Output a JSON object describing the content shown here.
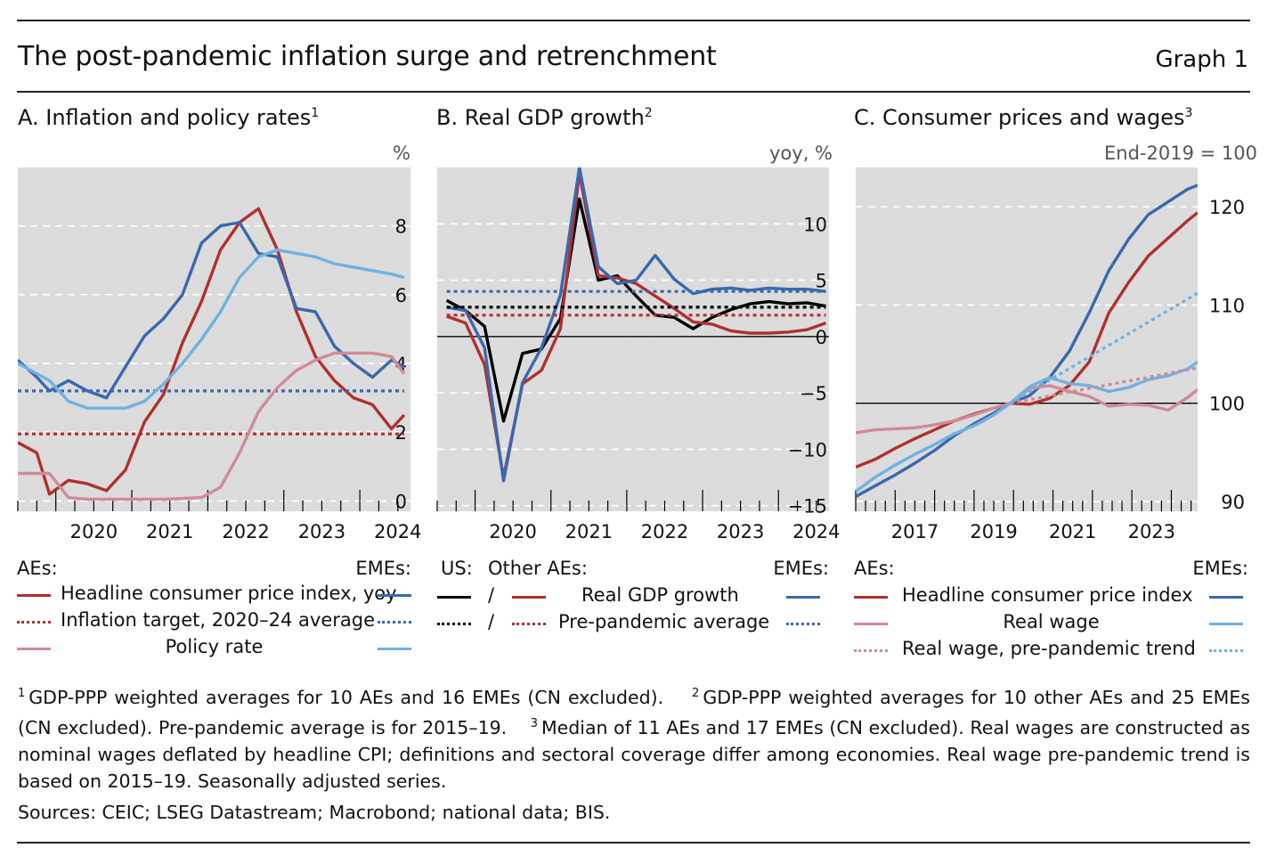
{
  "header": {
    "title": "The post-pandemic inflation surge and retrenchment",
    "graph_number": "Graph 1"
  },
  "colors": {
    "ae_red": "#b03030",
    "eme_blue": "#3a68ad",
    "light_blue": "#6fb2e0",
    "pink": "#d08b97",
    "black": "#000000",
    "plot_bg": "#dcdcdc"
  },
  "panelA": {
    "title": "A. Inflation and policy rates",
    "title_sup": "1",
    "unit": "%",
    "legend": {
      "left_head": "AEs:",
      "right_head": "EMEs:",
      "items": [
        {
          "label": "Headline consumer price index, yoy"
        },
        {
          "label": "Inflation target, 2020–24 average"
        },
        {
          "label": "Policy rate"
        }
      ]
    }
  },
  "panelB": {
    "title": "B. Real GDP growth",
    "title_sup": "2",
    "unit": "yoy, %",
    "legend": {
      "us_head": "US:",
      "other_head": "Other AEs:",
      "right_head": "EMEs:",
      "slash": "/",
      "items": [
        {
          "label": "Real GDP growth"
        },
        {
          "label": "Pre-pandemic average"
        }
      ]
    }
  },
  "panelC": {
    "title": "C. Consumer prices and wages",
    "title_sup": "3",
    "unit": "End-2019 = 100",
    "legend": {
      "left_head": "AEs:",
      "right_head": "EMEs:",
      "items": [
        {
          "label": "Headline consumer price index"
        },
        {
          "label": "Real wage"
        },
        {
          "label": "Real wage, pre-pandemic trend"
        }
      ]
    }
  },
  "footnotes": {
    "n1_mark": "1",
    "n1": "GDP-PPP weighted averages for 10 AEs and 16 EMEs (CN excluded).",
    "n2_mark": "2",
    "n2": "GDP-PPP weighted averages for 10 other AEs and 25 EMEs (CN excluded). Pre-pandemic average is for 2015–19.",
    "n3_mark": "3",
    "n3": "Median of 11 AEs and 17 EMEs (CN excluded). Real wages are constructed as nominal wages deflated by headline CPI; definitions and sectoral coverage differ among economies. Real wage pre-pandemic trend is based on 2015–19. Seasonally adjusted series."
  },
  "sources": "Sources: CEIC; LSEG Datastream; Macrobond; national data; BIS.",
  "chart_data": [
    {
      "type": "line",
      "title": "A. Inflation and policy rates",
      "ylabel": "%",
      "x_ticks": [
        "2020",
        "2021",
        "2022",
        "2023",
        "2024"
      ],
      "xlim": [
        "2019-07",
        "2024-09"
      ],
      "ylim": [
        -0.3,
        9.7
      ],
      "y_ticks": [
        0,
        2,
        4,
        6,
        8
      ],
      "grid": true,
      "series": [
        {
          "name": "Headline consumer price index, yoy",
          "group": "AEs",
          "color": "ae_red",
          "style": "solid",
          "x": [
            "2019-07",
            "2019-10",
            "2019-12",
            "2020-03",
            "2020-06",
            "2020-09",
            "2020-12",
            "2021-03",
            "2021-06",
            "2021-09",
            "2021-12",
            "2022-03",
            "2022-06",
            "2022-09",
            "2022-12",
            "2023-03",
            "2023-06",
            "2023-09",
            "2023-12",
            "2024-03",
            "2024-06",
            "2024-08"
          ],
          "values": [
            1.7,
            1.4,
            0.2,
            0.6,
            0.5,
            0.3,
            0.9,
            2.3,
            3.1,
            4.6,
            5.8,
            7.3,
            8.1,
            8.5,
            7.3,
            5.5,
            4.2,
            3.5,
            3.0,
            2.8,
            2.1,
            2.5
          ]
        },
        {
          "name": "Headline consumer price index, yoy",
          "group": "EMEs",
          "color": "eme_blue",
          "style": "solid",
          "x": [
            "2019-07",
            "2019-10",
            "2019-12",
            "2020-03",
            "2020-06",
            "2020-09",
            "2020-12",
            "2021-03",
            "2021-06",
            "2021-09",
            "2021-12",
            "2022-03",
            "2022-06",
            "2022-09",
            "2022-12",
            "2023-03",
            "2023-06",
            "2023-09",
            "2023-12",
            "2024-03",
            "2024-06",
            "2024-08"
          ],
          "values": [
            4.1,
            3.6,
            3.2,
            3.5,
            3.2,
            3.0,
            3.9,
            4.8,
            5.3,
            6.0,
            7.5,
            8.0,
            8.1,
            7.2,
            7.1,
            5.6,
            5.5,
            4.5,
            4.0,
            3.6,
            4.1,
            3.9
          ]
        },
        {
          "name": "Inflation target, 2020–24 average",
          "group": "AEs",
          "color": "ae_red",
          "style": "dotted",
          "x": [
            "2019-07",
            "2024-08"
          ],
          "values": [
            1.95,
            1.95
          ]
        },
        {
          "name": "Inflation target, 2020–24 average",
          "group": "EMEs",
          "color": "eme_blue",
          "style": "dotted",
          "x": [
            "2019-07",
            "2024-08"
          ],
          "values": [
            3.2,
            3.2
          ]
        },
        {
          "name": "Policy rate",
          "group": "AEs",
          "color": "pink",
          "style": "solid",
          "x": [
            "2019-07",
            "2019-12",
            "2020-03",
            "2020-06",
            "2020-12",
            "2021-06",
            "2021-12",
            "2022-03",
            "2022-06",
            "2022-09",
            "2022-12",
            "2023-03",
            "2023-06",
            "2023-09",
            "2023-12",
            "2024-03",
            "2024-06",
            "2024-08"
          ],
          "values": [
            0.8,
            0.8,
            0.1,
            0.05,
            0.05,
            0.05,
            0.1,
            0.4,
            1.4,
            2.6,
            3.3,
            3.8,
            4.1,
            4.3,
            4.3,
            4.3,
            4.2,
            3.7
          ]
        },
        {
          "name": "Policy rate",
          "group": "EMEs",
          "color": "light_blue",
          "style": "solid",
          "x": [
            "2019-07",
            "2019-12",
            "2020-03",
            "2020-06",
            "2020-12",
            "2021-03",
            "2021-06",
            "2021-09",
            "2021-12",
            "2022-03",
            "2022-06",
            "2022-09",
            "2022-12",
            "2023-03",
            "2023-06",
            "2023-09",
            "2023-12",
            "2024-03",
            "2024-06",
            "2024-08"
          ],
          "values": [
            4.0,
            3.5,
            2.9,
            2.7,
            2.7,
            2.9,
            3.4,
            4.0,
            4.7,
            5.5,
            6.5,
            7.1,
            7.3,
            7.2,
            7.1,
            6.9,
            6.8,
            6.7,
            6.6,
            6.5
          ]
        }
      ]
    },
    {
      "type": "line",
      "title": "B. Real GDP growth",
      "ylabel": "yoy, %",
      "x_ticks": [
        "2020",
        "2021",
        "2022",
        "2023",
        "2024"
      ],
      "xlim": [
        "2019-07",
        "2024-09"
      ],
      "ylim": [
        -15.5,
        15
      ],
      "y_ticks": [
        -15,
        -10,
        -5,
        0,
        5,
        10
      ],
      "grid": true,
      "series": [
        {
          "name": "Real GDP growth",
          "group": "US",
          "color": "black",
          "style": "solid",
          "x": [
            "2019-Q3",
            "2019-Q4",
            "2020-Q1",
            "2020-Q2",
            "2020-Q3",
            "2020-Q4",
            "2021-Q1",
            "2021-Q2",
            "2021-Q3",
            "2021-Q4",
            "2022-Q1",
            "2022-Q2",
            "2022-Q3",
            "2022-Q4",
            "2023-Q1",
            "2023-Q2",
            "2023-Q3",
            "2023-Q4",
            "2024-Q1",
            "2024-Q2",
            "2024-Q3"
          ],
          "values": [
            3.2,
            2.3,
            0.9,
            -7.5,
            -1.5,
            -1.1,
            1.6,
            12.2,
            5.0,
            5.4,
            3.6,
            1.9,
            1.7,
            0.7,
            1.7,
            2.4,
            2.9,
            3.1,
            2.9,
            3.0,
            2.7
          ]
        },
        {
          "name": "Real GDP growth",
          "group": "Other AEs",
          "color": "ae_red",
          "style": "solid",
          "x": [
            "2019-Q3",
            "2019-Q4",
            "2020-Q1",
            "2020-Q2",
            "2020-Q3",
            "2020-Q4",
            "2021-Q1",
            "2021-Q2",
            "2021-Q3",
            "2021-Q4",
            "2022-Q1",
            "2022-Q2",
            "2022-Q3",
            "2022-Q4",
            "2023-Q1",
            "2023-Q2",
            "2023-Q3",
            "2023-Q4",
            "2024-Q1",
            "2024-Q2",
            "2024-Q3"
          ],
          "values": [
            1.8,
            1.2,
            -2.5,
            -12.5,
            -4.2,
            -3.0,
            0.7,
            14.5,
            5.4,
            5.2,
            4.7,
            3.6,
            2.5,
            1.3,
            1.1,
            0.5,
            0.3,
            0.3,
            0.4,
            0.6,
            1.2
          ]
        },
        {
          "name": "Real GDP growth",
          "group": "EMEs",
          "color": "eme_blue",
          "style": "solid",
          "x": [
            "2019-Q3",
            "2019-Q4",
            "2020-Q1",
            "2020-Q2",
            "2020-Q3",
            "2020-Q4",
            "2021-Q1",
            "2021-Q2",
            "2021-Q3",
            "2021-Q4",
            "2022-Q1",
            "2022-Q2",
            "2022-Q3",
            "2022-Q4",
            "2023-Q1",
            "2023-Q2",
            "2023-Q3",
            "2023-Q4",
            "2024-Q1",
            "2024-Q2",
            "2024-Q3"
          ],
          "values": [
            2.6,
            2.3,
            -1.0,
            -12.8,
            -4.1,
            -1.0,
            3.7,
            15.0,
            6.2,
            4.7,
            5.0,
            7.2,
            5.1,
            3.8,
            4.2,
            4.3,
            4.1,
            4.3,
            4.2,
            4.2,
            4.0
          ]
        },
        {
          "name": "Pre-pandemic average",
          "group": "US",
          "color": "black",
          "style": "dotted",
          "x": [
            "2019-Q3",
            "2024-Q3"
          ],
          "values": [
            2.6,
            2.6
          ]
        },
        {
          "name": "Pre-pandemic average",
          "group": "Other AEs",
          "color": "ae_red",
          "style": "dotted",
          "x": [
            "2019-Q3",
            "2024-Q3"
          ],
          "values": [
            1.9,
            1.9
          ]
        },
        {
          "name": "Pre-pandemic average",
          "group": "EMEs",
          "color": "eme_blue",
          "style": "dotted",
          "x": [
            "2019-Q3",
            "2024-Q3"
          ],
          "values": [
            4.0,
            4.0
          ]
        }
      ]
    },
    {
      "type": "line",
      "title": "C. Consumer prices and wages",
      "ylabel": "End-2019 = 100",
      "x_ticks": [
        "2017",
        "2019",
        "2021",
        "2023"
      ],
      "xlim": [
        "2016-01",
        "2024-09"
      ],
      "ylim": [
        89,
        124
      ],
      "y_ticks": [
        90,
        100,
        110,
        120
      ],
      "grid": true,
      "series": [
        {
          "name": "Headline consumer price index",
          "group": "AEs",
          "color": "ae_red",
          "style": "solid",
          "x": [
            "2016-01",
            "2016-07",
            "2017-01",
            "2017-07",
            "2018-01",
            "2018-07",
            "2019-01",
            "2019-07",
            "2019-12",
            "2020-06",
            "2020-12",
            "2021-06",
            "2021-12",
            "2022-06",
            "2022-12",
            "2023-06",
            "2023-12",
            "2024-06",
            "2024-09"
          ],
          "values": [
            93.5,
            94.3,
            95.4,
            96.4,
            97.3,
            98.2,
            98.9,
            99.5,
            100,
            99.9,
            100.5,
            101.8,
            104.2,
            109.2,
            112.3,
            115.0,
            116.8,
            118.6,
            119.4
          ]
        },
        {
          "name": "Headline consumer price index",
          "group": "EMEs",
          "color": "eme_blue",
          "style": "solid",
          "x": [
            "2016-01",
            "2016-07",
            "2017-01",
            "2017-07",
            "2018-01",
            "2018-07",
            "2019-01",
            "2019-07",
            "2019-12",
            "2020-06",
            "2020-12",
            "2021-06",
            "2021-12",
            "2022-06",
            "2022-12",
            "2023-06",
            "2023-12",
            "2024-06",
            "2024-09"
          ],
          "values": [
            90.5,
            91.6,
            92.7,
            93.9,
            95.2,
            96.7,
            97.9,
            99.0,
            100,
            100.8,
            102.6,
            105.3,
            109.2,
            113.5,
            116.7,
            119.2,
            120.5,
            121.8,
            122.2
          ]
        },
        {
          "name": "Real wage",
          "group": "AEs",
          "color": "pink",
          "style": "solid",
          "x": [
            "2016-01",
            "2016-07",
            "2017-01",
            "2017-07",
            "2018-01",
            "2018-07",
            "2019-01",
            "2019-07",
            "2019-12",
            "2020-06",
            "2020-12",
            "2021-06",
            "2021-12",
            "2022-06",
            "2022-12",
            "2023-06",
            "2023-12",
            "2024-06",
            "2024-09"
          ],
          "values": [
            97.0,
            97.3,
            97.4,
            97.5,
            97.8,
            98.2,
            98.8,
            99.5,
            100,
            101.5,
            101.8,
            101.2,
            100.7,
            99.7,
            99.9,
            99.8,
            99.3,
            100.6,
            101.4
          ]
        },
        {
          "name": "Real wage",
          "group": "EMEs",
          "color": "light_blue",
          "style": "solid",
          "x": [
            "2016-01",
            "2016-07",
            "2017-01",
            "2017-07",
            "2018-01",
            "2018-07",
            "2019-01",
            "2019-07",
            "2019-12",
            "2020-06",
            "2020-12",
            "2021-06",
            "2021-12",
            "2022-06",
            "2022-12",
            "2023-06",
            "2023-12",
            "2024-06",
            "2024-09"
          ],
          "values": [
            91.0,
            92.5,
            93.7,
            94.8,
            95.8,
            96.9,
            97.7,
            98.8,
            100,
            101.7,
            102.6,
            102.0,
            101.8,
            101.2,
            101.6,
            102.4,
            102.8,
            103.5,
            104.2
          ]
        },
        {
          "name": "Real wage, pre-pandemic trend",
          "group": "AEs",
          "color": "pink",
          "style": "dotted",
          "x": [
            "2019-12",
            "2024-09"
          ],
          "values": [
            100,
            103.6
          ]
        },
        {
          "name": "Real wage, pre-pandemic trend",
          "group": "EMEs",
          "color": "light_blue",
          "style": "dotted",
          "x": [
            "2019-12",
            "2024-09"
          ],
          "values": [
            100,
            111.2
          ]
        }
      ]
    }
  ]
}
